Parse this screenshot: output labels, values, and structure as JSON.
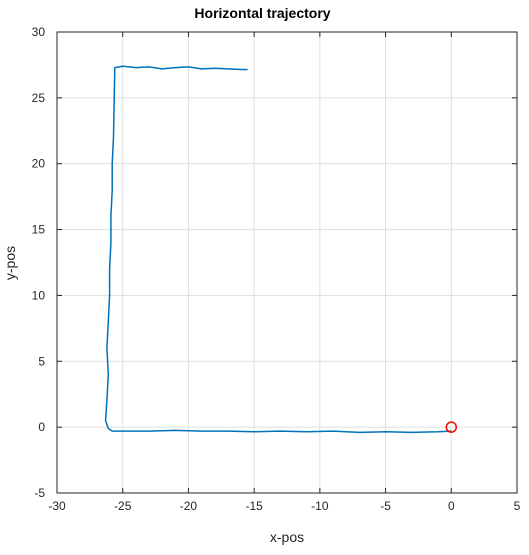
{
  "chart_data": {
    "type": "line",
    "title": "Horizontal trajectory",
    "xlabel": "x-pos",
    "ylabel": "y-pos",
    "xlim": [
      -30,
      5
    ],
    "ylim": [
      -5,
      30
    ],
    "xticks": [
      -30,
      -25,
      -20,
      -15,
      -10,
      -5,
      0,
      5
    ],
    "yticks": [
      -5,
      0,
      5,
      10,
      15,
      20,
      25,
      30
    ],
    "grid": true,
    "series": [
      {
        "color": "#0072BD",
        "x": [
          0,
          -1,
          -3,
          -5,
          -7,
          -9,
          -11,
          -13,
          -15,
          -17,
          -19,
          -21,
          -23,
          -25,
          -25.8,
          -26.1,
          -26.3,
          -26.2,
          -26.1,
          -26.2,
          -26.1,
          -26.0,
          -26.0,
          -25.9,
          -25.9,
          -25.8,
          -25.8,
          -25.7,
          -25.6,
          -25.0,
          -24.0,
          -23.0,
          -22.0,
          -21.0,
          -20.0,
          -19.0,
          -18.0,
          -17.0,
          -16.0,
          -15.5
        ],
        "y": [
          -0.3,
          -0.35,
          -0.4,
          -0.35,
          -0.4,
          -0.3,
          -0.35,
          -0.3,
          -0.35,
          -0.3,
          -0.3,
          -0.25,
          -0.3,
          -0.3,
          -0.3,
          -0.1,
          0.5,
          2.0,
          4.0,
          6.0,
          8.0,
          10.0,
          12.0,
          14.0,
          16.0,
          18.0,
          20.0,
          22.0,
          27.3,
          27.4,
          27.3,
          27.35,
          27.2,
          27.3,
          27.35,
          27.2,
          27.25,
          27.2,
          27.15,
          27.15
        ]
      },
      {
        "type": "marker",
        "marker": "circle",
        "color": "#FF0000",
        "x": [
          0
        ],
        "y": [
          0
        ]
      }
    ]
  }
}
